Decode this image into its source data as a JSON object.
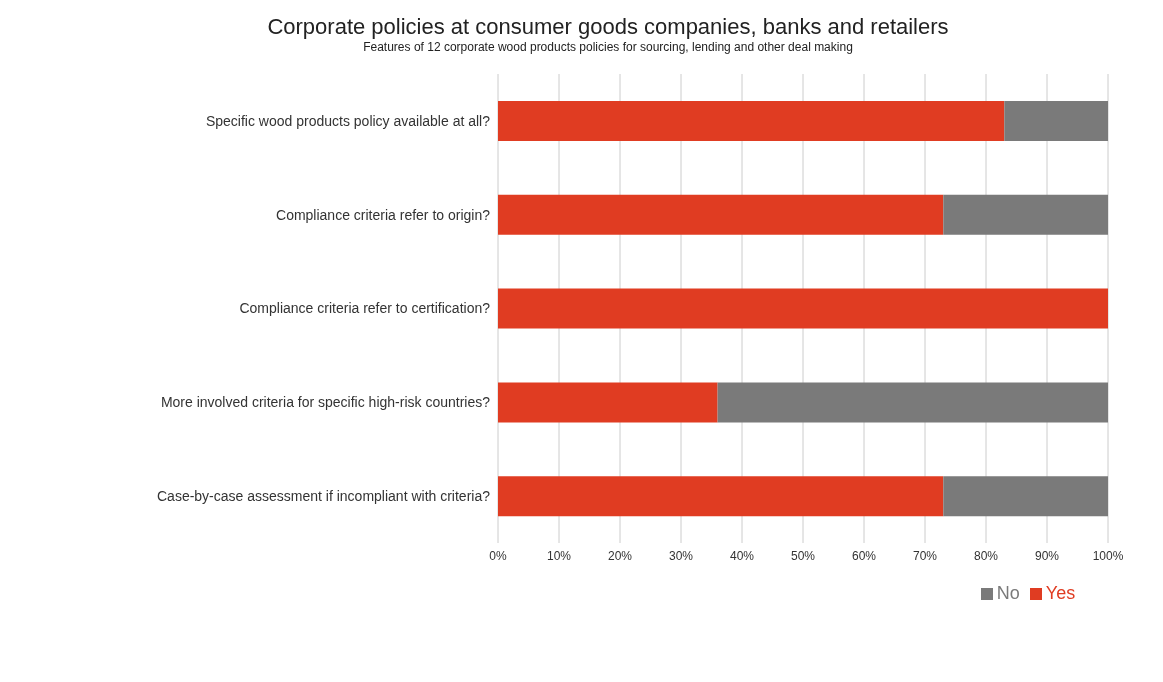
{
  "chart_data": {
    "type": "bar",
    "orientation": "horizontal",
    "stacked": true,
    "title": "Corporate policies at consumer goods companies, banks and retailers",
    "subtitle": "Features of 12 corporate wood products policies for sourcing, lending and other deal making",
    "categories": [
      "Specific wood products  policy available at all?",
      "Compliance criteria refer to origin?",
      "Compliance criteria refer to certification?",
      "More involved  criteria for specific high-risk countries?",
      "Case-by-case assessment if incompliant with criteria?"
    ],
    "series": [
      {
        "name": "Yes",
        "color": "#e03c22",
        "values": [
          83,
          73,
          100,
          36,
          73
        ]
      },
      {
        "name": "No",
        "color": "#7a7a7a",
        "values": [
          17,
          27,
          0,
          64,
          27
        ]
      }
    ],
    "xlim": [
      0,
      100
    ],
    "xticks": [
      {
        "value": 0,
        "label": "0%"
      },
      {
        "value": 10,
        "label": "10%"
      },
      {
        "value": 20,
        "label": "20%"
      },
      {
        "value": 30,
        "label": "30%"
      },
      {
        "value": 40,
        "label": "40%"
      },
      {
        "value": 50,
        "label": "50%"
      },
      {
        "value": 60,
        "label": "60%"
      },
      {
        "value": 70,
        "label": "70%"
      },
      {
        "value": 80,
        "label": "80%"
      },
      {
        "value": 90,
        "label": "90%"
      },
      {
        "value": 100,
        "label": "100%"
      }
    ],
    "grid": "x",
    "legend": "bottom"
  }
}
